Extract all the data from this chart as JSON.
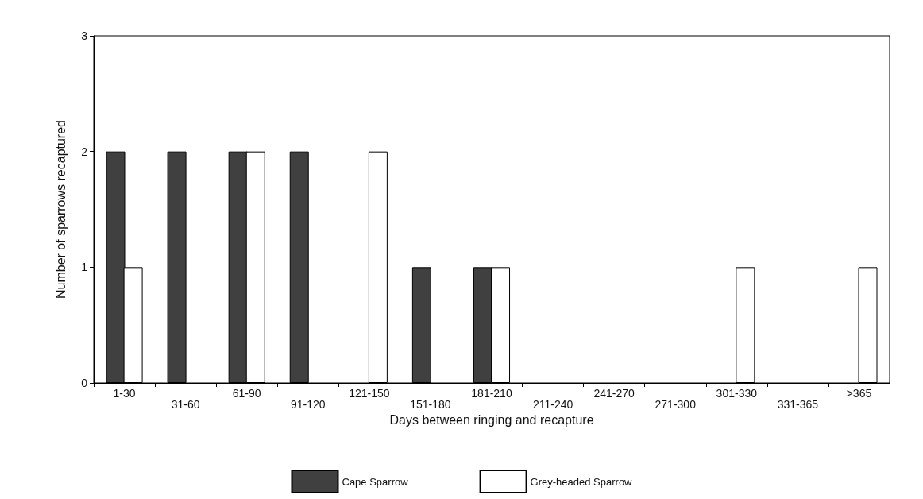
{
  "chart_data": {
    "type": "bar",
    "xlabel": "Days between ringing and recapture",
    "ylabel": "Number of sparrows recaptured",
    "categories": [
      "1-30",
      "31-60",
      "61-90",
      "91-120",
      "121-150",
      "151-180",
      "181-210",
      "211-240",
      "241-270",
      "271-300",
      "301-330",
      "331-365",
      ">365"
    ],
    "series": [
      {
        "name": "Cape Sparrow",
        "color": "#404040",
        "values": [
          2,
          2,
          2,
          2,
          0,
          1,
          1,
          0,
          0,
          0,
          0,
          0,
          0
        ]
      },
      {
        "name": "Grey-headed Sparrow",
        "color": "#ffffff",
        "values": [
          1,
          0,
          2,
          0,
          2,
          0,
          1,
          0,
          0,
          0,
          1,
          0,
          1
        ]
      }
    ],
    "ylim": [
      0,
      3
    ],
    "yticks": [
      0,
      1,
      2,
      3
    ],
    "grid": false,
    "legend": "bottom"
  }
}
